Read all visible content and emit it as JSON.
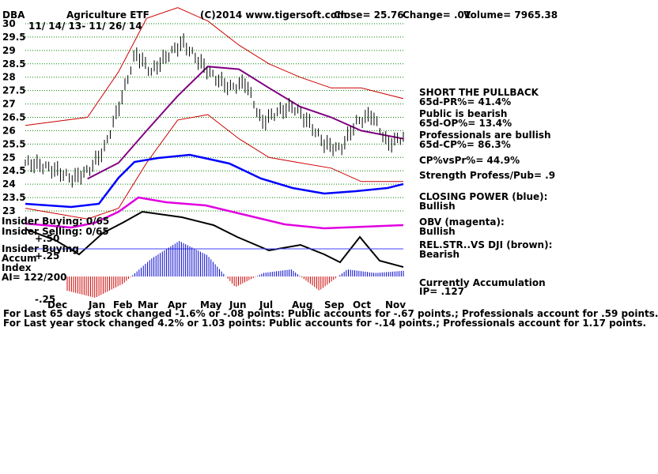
{
  "header": {
    "ticker": "DBA",
    "name": "Agriculture ETF",
    "source": "(C)2014 www.tigersoft.com",
    "close_text": "Close=  25.76",
    "change_text": "Change= .01",
    "volume_text": "Volume= 7965.38",
    "date_range": "11/ 14/ 13- 11/ 26/ 14"
  },
  "colors": {
    "closing_power": "#0000ff",
    "obv": "#e000e0",
    "ma": "#800080",
    "bands": "#cc0000",
    "acc_positive": "#0000cc",
    "acc_negative": "#cc0000",
    "gridline": "#008000"
  },
  "panel_labels": {
    "insider_buying_1": "Insider Buying: 0/65",
    "insider_selling": "Insider Selling: 0/65",
    "plus50": "+.50",
    "insider_buying_2": "Insider Buying",
    "accum": "Accum",
    "plus25": "+.25",
    "index": "Index",
    "ai": "AI= 122/200",
    "minus25": "-.25"
  },
  "side": {
    "short_title": "SHORT THE PULLBACK",
    "pr": "65d-PR%= 41.4%",
    "public_title": "Public is bearish",
    "op": "65d-OP%= 13.4%",
    "prof_title": "Professionals are bullish",
    "cp": "65d-CP%= 86.3%",
    "cpvspr": "CP%vsPr%=  44.9%",
    "strength": "Strength Profess/Pub= .9",
    "closing_power_title": "CLOSING POWER (blue):",
    "closing_power_value": "Bullish",
    "obv_title": "OBV (magenta):",
    "obv_value": "Bullish",
    "relstr_title": "REL.STR..VS DJI (brown):",
    "relstr_value": "Bearish",
    "accum_title": "Currently Accumulation",
    "ip": "IP=  .127"
  },
  "footer": {
    "line1": "For Last 65 days stock changed -1.6% or -.08 points:  Public accounts for -.67 points.;  Professionals account for  .59 points.",
    "line2": "For Last year stock changed  4.2% or  1.03 points:  Public accounts for -.14 points.;  Professionals account for  1.17 points."
  },
  "chart_data": {
    "type": "line",
    "title": "Agriculture ETF",
    "ylim": [
      23,
      30
    ],
    "y_ticks": [
      "30",
      "29.5",
      "29",
      "28.5",
      "28",
      "27.5",
      "27",
      "26.5",
      "26",
      "25.5",
      "25",
      "24.5",
      "24",
      "23.5",
      "23"
    ],
    "x_ticks": [
      "Dec",
      "Jan",
      "Feb",
      "Mar",
      "Apr",
      "May",
      "Jun",
      "Jul",
      "Aug",
      "Sep",
      "Oct",
      "Nov"
    ],
    "grid": true,
    "series": [
      {
        "role": "price",
        "x": [
          "2013-11-14",
          "2013-12-01",
          "2013-12-15",
          "2014-01-01",
          "2014-01-15",
          "2014-02-01",
          "2014-02-15",
          "2014-03-01",
          "2014-03-15",
          "2014-04-01",
          "2014-04-15",
          "2014-05-01",
          "2014-05-15",
          "2014-06-01",
          "2014-06-15",
          "2014-07-01",
          "2014-07-15",
          "2014-08-01",
          "2014-08-15",
          "2014-09-01",
          "2014-09-15",
          "2014-10-01",
          "2014-10-15",
          "2014-11-01",
          "2014-11-26"
        ],
        "values": [
          24.8,
          24.7,
          24.5,
          24.2,
          24.5,
          25.3,
          27.0,
          28.9,
          28.2,
          28.8,
          29.3,
          28.6,
          28.0,
          27.6,
          27.8,
          26.3,
          26.7,
          26.9,
          26.3,
          25.5,
          25.3,
          26.3,
          26.6,
          25.5,
          25.76
        ]
      },
      {
        "role": "ma",
        "x": [
          "2014-01-15",
          "2014-02-15",
          "2014-03-15",
          "2014-04-15",
          "2014-05-15",
          "2014-06-15",
          "2014-07-15",
          "2014-08-15",
          "2014-09-15",
          "2014-10-15",
          "2014-11-26"
        ],
        "values": [
          24.2,
          24.8,
          26.0,
          27.3,
          28.4,
          28.3,
          27.6,
          26.9,
          26.5,
          26.0,
          25.7
        ]
      },
      {
        "role": "upper_band",
        "x": [
          "2013-11-14",
          "2014-01-15",
          "2014-02-15",
          "2014-03-15",
          "2014-04-15",
          "2014-05-15",
          "2014-06-15",
          "2014-07-15",
          "2014-08-15",
          "2014-09-15",
          "2014-10-15",
          "2014-11-26"
        ],
        "values": [
          26.2,
          26.5,
          28.2,
          30.2,
          30.6,
          30.1,
          29.2,
          28.5,
          28.0,
          27.6,
          27.6,
          27.2
        ]
      },
      {
        "role": "lower_band",
        "x": [
          "2013-11-14",
          "2014-01-15",
          "2014-02-15",
          "2014-03-15",
          "2014-04-15",
          "2014-05-15",
          "2014-06-15",
          "2014-07-15",
          "2014-08-15",
          "2014-09-15",
          "2014-10-15",
          "2014-11-26"
        ],
        "values": [
          23.1,
          22.7,
          23.1,
          24.8,
          26.4,
          26.6,
          25.7,
          25.0,
          24.8,
          24.6,
          24.1,
          24.1
        ]
      }
    ],
    "accumulation": [
      -0.2,
      -0.3,
      -0.1,
      0.25,
      0.5,
      0.3,
      -0.15,
      0.05,
      0.1,
      -0.2,
      0.1,
      0.05,
      0.08
    ]
  }
}
